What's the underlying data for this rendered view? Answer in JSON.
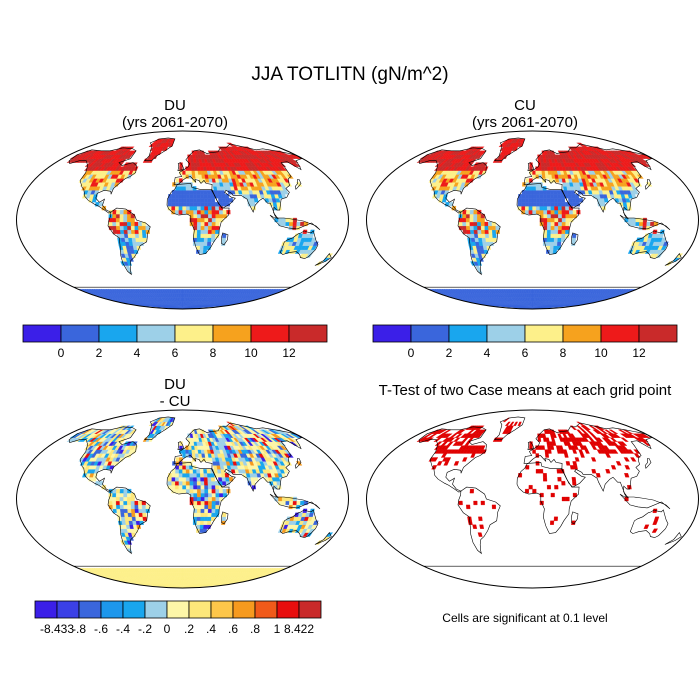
{
  "title": "JJA TOTLITN (gN/m^2)",
  "panels": [
    {
      "id": "du",
      "title_line1": "DU",
      "title_line2": "(yrs 2061-2070)"
    },
    {
      "id": "cu",
      "title_line1": "CU",
      "title_line2": "(yrs 2061-2070)"
    },
    {
      "id": "diff",
      "title_line1": "DU",
      "title_line2": "- CU"
    },
    {
      "id": "ttest",
      "title_line1": "T-Test of two Case means at each grid point"
    }
  ],
  "significance_note": "Cells are significant at 0.1 level",
  "colorbars": {
    "absolute": {
      "colors": [
        "#3b1fe8",
        "#3a66dc",
        "#19a6ee",
        "#9dd0e8",
        "#fdf08a",
        "#f6a21e",
        "#ee1a1a",
        "#c92a2a"
      ],
      "labels": [
        "0",
        "2",
        "4",
        "6",
        "8",
        "10",
        "12"
      ]
    },
    "difference": {
      "colors": [
        "#3b1fe8",
        "#3b40e6",
        "#3a66dc",
        "#1d97ec",
        "#19a6ee",
        "#9dd0e8",
        "#fdf6a8",
        "#fde77a",
        "#fdc64a",
        "#f69a1e",
        "#f05a1a",
        "#e80e0e",
        "#c92a2a"
      ],
      "labels": [
        "-8.433",
        "-.8",
        "-.6",
        "-.4",
        "-.2",
        "0",
        ".2",
        ".4",
        ".6",
        ".8",
        "1",
        "8.422"
      ]
    }
  },
  "map_colors": {
    "ocean": "#ffffff",
    "significant": "#e00000",
    "antarctica_abs": "#3a66dc",
    "antarctica_diff": "#fdf08a"
  }
}
